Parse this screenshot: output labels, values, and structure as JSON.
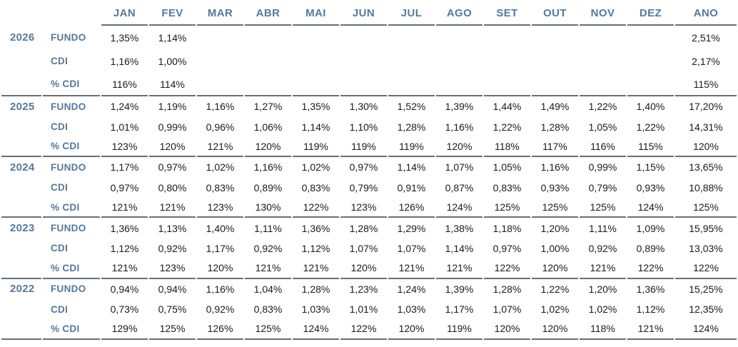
{
  "colors": {
    "accent_blue": "#54799e",
    "value_text": "#1a1a1a",
    "line": "#646e80",
    "background": "#ffffff"
  },
  "table": {
    "months": [
      "JAN",
      "FEV",
      "MAR",
      "ABR",
      "MAI",
      "JUN",
      "JUL",
      "AGO",
      "SET",
      "OUT",
      "NOV",
      "DEZ",
      "ANO"
    ],
    "row_labels": [
      "FUNDO",
      "CDI",
      "% CDI"
    ],
    "years": [
      {
        "year": "2026",
        "fundo": [
          "1,35%",
          "1,14%",
          "",
          "",
          "",
          "",
          "",
          "",
          "",
          "",
          "",
          "",
          "2,51%"
        ],
        "cdi": [
          "1,16%",
          "1,00%",
          "",
          "",
          "",
          "",
          "",
          "",
          "",
          "",
          "",
          "",
          "2,17%"
        ],
        "pct_cdi": [
          "116%",
          "114%",
          "",
          "",
          "",
          "",
          "",
          "",
          "",
          "",
          "",
          "",
          "115%"
        ]
      },
      {
        "year": "2025",
        "fundo": [
          "1,24%",
          "1,19%",
          "1,16%",
          "1,27%",
          "1,35%",
          "1,30%",
          "1,52%",
          "1,39%",
          "1,44%",
          "1,49%",
          "1,22%",
          "1,40%",
          "17,20%"
        ],
        "cdi": [
          "1,01%",
          "0,99%",
          "0,96%",
          "1,06%",
          "1,14%",
          "1,10%",
          "1,28%",
          "1,16%",
          "1,22%",
          "1,28%",
          "1,05%",
          "1,22%",
          "14,31%"
        ],
        "pct_cdi": [
          "123%",
          "120%",
          "121%",
          "120%",
          "119%",
          "119%",
          "119%",
          "120%",
          "118%",
          "117%",
          "116%",
          "115%",
          "120%"
        ]
      },
      {
        "year": "2024",
        "fundo": [
          "1,17%",
          "0,97%",
          "1,02%",
          "1,16%",
          "1,02%",
          "0,97%",
          "1,14%",
          "1,07%",
          "1,05%",
          "1,16%",
          "0,99%",
          "1,15%",
          "13,65%"
        ],
        "cdi": [
          "0,97%",
          "0,80%",
          "0,83%",
          "0,89%",
          "0,83%",
          "0,79%",
          "0,91%",
          "0,87%",
          "0,83%",
          "0,93%",
          "0,79%",
          "0,93%",
          "10,88%"
        ],
        "pct_cdi": [
          "121%",
          "121%",
          "123%",
          "130%",
          "122%",
          "123%",
          "126%",
          "124%",
          "125%",
          "125%",
          "125%",
          "124%",
          "125%"
        ]
      },
      {
        "year": "2023",
        "fundo": [
          "1,36%",
          "1,13%",
          "1,40%",
          "1,11%",
          "1,36%",
          "1,28%",
          "1,29%",
          "1,38%",
          "1,18%",
          "1,20%",
          "1,11%",
          "1,09%",
          "15,95%"
        ],
        "cdi": [
          "1,12%",
          "0,92%",
          "1,17%",
          "0,92%",
          "1,12%",
          "1,07%",
          "1,07%",
          "1,14%",
          "0,97%",
          "1,00%",
          "0,92%",
          "0,89%",
          "13,03%"
        ],
        "pct_cdi": [
          "121%",
          "123%",
          "120%",
          "121%",
          "121%",
          "120%",
          "121%",
          "121%",
          "122%",
          "120%",
          "121%",
          "122%",
          "122%"
        ]
      },
      {
        "year": "2022",
        "fundo": [
          "0,94%",
          "0,94%",
          "1,16%",
          "1,04%",
          "1,28%",
          "1,23%",
          "1,24%",
          "1,39%",
          "1,28%",
          "1,22%",
          "1,20%",
          "1,36%",
          "15,25%"
        ],
        "cdi": [
          "0,73%",
          "0,75%",
          "0,92%",
          "0,83%",
          "1,03%",
          "1,01%",
          "1,03%",
          "1,17%",
          "1,07%",
          "1,02%",
          "1,02%",
          "1,12%",
          "12,35%"
        ],
        "pct_cdi": [
          "129%",
          "125%",
          "126%",
          "125%",
          "124%",
          "122%",
          "120%",
          "119%",
          "120%",
          "120%",
          "118%",
          "121%",
          "124%"
        ]
      }
    ]
  }
}
